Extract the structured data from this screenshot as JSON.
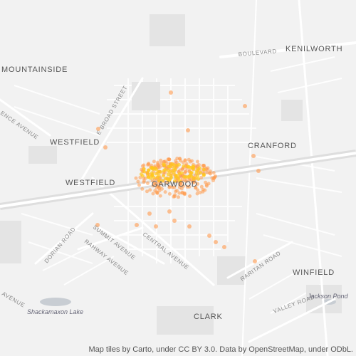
{
  "map": {
    "places": {
      "mountainside": "MOUNTAINSIDE",
      "kenilworth": "KENILWORTH",
      "westfield_north": "WESTFIELD",
      "westfield_west": "WESTFIELD",
      "cranford": "CRANFORD",
      "garwood": "GARWOOD",
      "winfield": "WINFIELD",
      "clark": "CLARK"
    },
    "roads": {
      "boulevard": "BOULEVARD",
      "e_broad_street": "E BROAD STREET",
      "lawrence_avenue": "ENCE AVENUE",
      "dorian_road": "DORIAN ROAD",
      "rahway_avenue": "RAHWAY AVENUE",
      "summit_avenue": "SUMMIT AVENUE",
      "central_avenue": "CENTRAL AVENUE",
      "raritan_road": "RARITAN ROAD",
      "valley_road": "VALLEY ROAD",
      "avenue_sw": "AVENUE"
    },
    "water": {
      "shackamaxon_lake": "Shackamaxon Lake",
      "jackson_pond": "Jackson Pond"
    },
    "attribution": "Map tiles by Carto, under CC BY 3.0. Data by OpenStreetMap, under ODbL.",
    "colors": {
      "background": "#f2f2f2",
      "street": "#ffffff",
      "block": "#e6e6e6",
      "highway": "#dcdcdc",
      "water": "#c8cdd3",
      "point_orange": "#ff9a4d",
      "point_yellow": "#ffc61a"
    }
  }
}
